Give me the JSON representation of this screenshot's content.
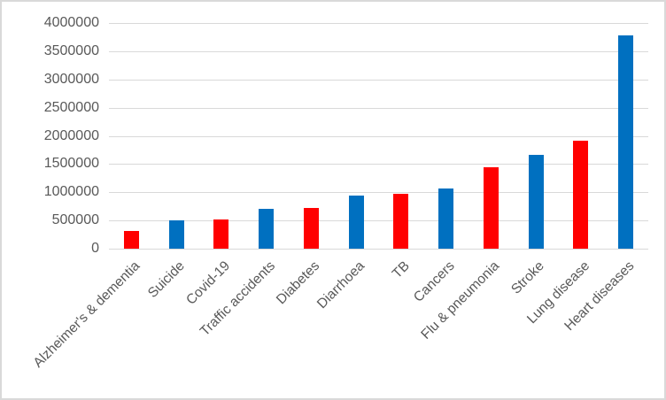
{
  "chart_data": {
    "type": "bar",
    "title": "",
    "categories": [
      "Alzheimer's & dementia",
      "Suicide",
      "Covid-19",
      "Traffic accidents",
      "Diabetes",
      "Diarrhoea",
      "TB",
      "Cancers",
      "Flu & pneumonia",
      "Stroke",
      "Lung disease",
      "Heart diseases"
    ],
    "values": [
      320000,
      500000,
      520000,
      705000,
      725000,
      945000,
      980000,
      1065000,
      1440000,
      1655000,
      1915000,
      3780000
    ],
    "bar_colors": [
      "#ff0000",
      "#0070c0",
      "#ff0000",
      "#0070c0",
      "#ff0000",
      "#0070c0",
      "#ff0000",
      "#0070c0",
      "#ff0000",
      "#0070c0",
      "#ff0000",
      "#0070c0"
    ],
    "xlabel": "",
    "ylabel": "",
    "ylim": [
      0,
      4000000
    ],
    "yticks": [
      0,
      500000,
      1000000,
      1500000,
      2000000,
      2500000,
      3000000,
      3500000,
      4000000
    ],
    "ytick_labels": [
      "0",
      "500000",
      "1000000",
      "1500000",
      "2000000",
      "2500000",
      "3000000",
      "3500000",
      "4000000"
    ],
    "grid": true,
    "legend": false,
    "x_tick_label_rotation_deg": 45
  },
  "colors": {
    "red_series": "#ff0000",
    "blue_series": "#0070c0",
    "gridline": "#d9d9d9",
    "axis_text": "#595959",
    "frame_border": "#d9d9d9",
    "background": "#ffffff"
  }
}
